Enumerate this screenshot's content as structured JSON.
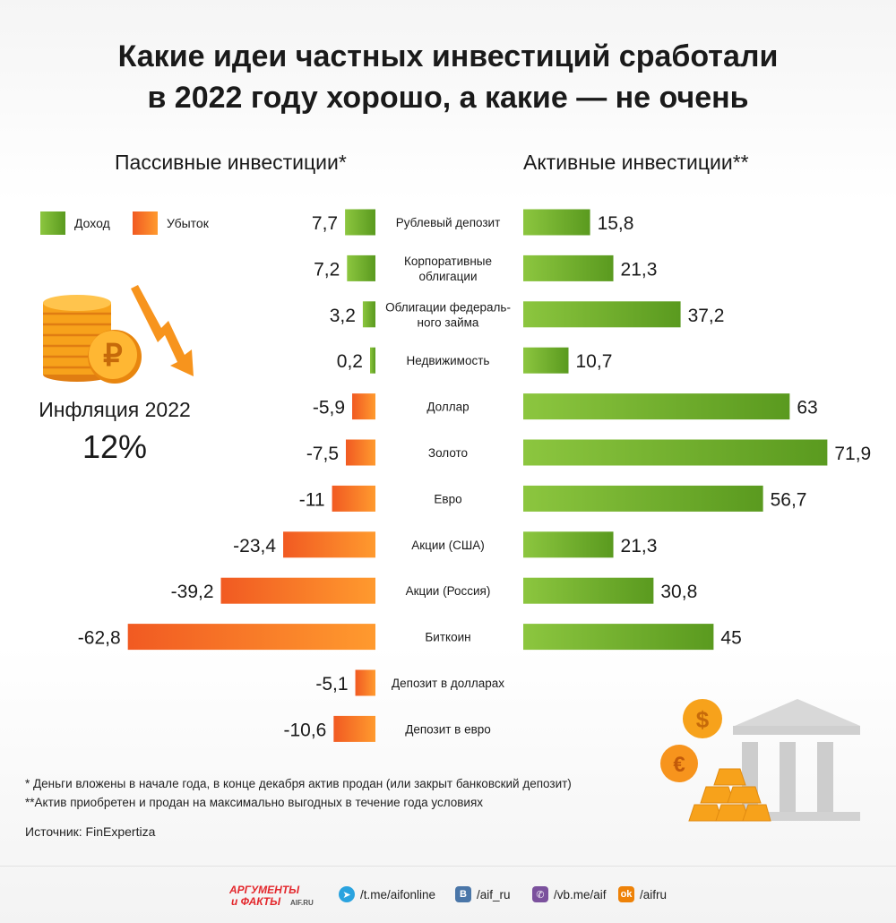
{
  "title_lines": [
    "Какие идеи частных инвестиций сработали",
    "в 2022 году хорошо, а какие — не очень"
  ],
  "passive_heading": "Пассивные инвестиции*",
  "active_heading": "Активные инвестиции**",
  "legend": {
    "income": "Доход",
    "loss": "Убыток"
  },
  "colors": {
    "income_light": "#8cc63f",
    "income_dark": "#5a9a1f",
    "loss_light": "#ff9a2e",
    "loss_dark": "#f15a22",
    "coin": "#f7a21b"
  },
  "inflation": {
    "label": "Инфляция 2022",
    "value": "12%"
  },
  "chart_data": {
    "type": "bar",
    "orientation": "horizontal",
    "categories": [
      "Рублевый депозит",
      "Корпоративные облигации",
      "Облигации федерального займа",
      "Недвижимость",
      "Доллар",
      "Золото",
      "Евро",
      "Акции (США)",
      "Акции (Россия)",
      "Биткоин",
      "Депозит в долларах",
      "Депозит в евро"
    ],
    "category_label_lines": [
      [
        "Рублевый депозит"
      ],
      [
        "Корпоративные",
        "облигации"
      ],
      [
        "Облигации федераль-",
        "ного займа"
      ],
      [
        "Недвижимость"
      ],
      [
        "Доллар"
      ],
      [
        "Золото"
      ],
      [
        "Евро"
      ],
      [
        "Акции (США)"
      ],
      [
        "Акции (Россия)"
      ],
      [
        "Биткоин"
      ],
      [
        "Депозит в долларах"
      ],
      [
        "Депозит в евро"
      ]
    ],
    "series": [
      {
        "name": "Пассивные инвестиции*",
        "values": [
          7.7,
          7.2,
          3.2,
          0.2,
          -5.9,
          -7.5,
          -11,
          -23.4,
          -39.2,
          -62.8,
          -5.1,
          -10.6
        ],
        "labels": [
          "7,7",
          "7,2",
          "3,2",
          "0,2",
          "-5,9",
          "-7,5",
          "-11",
          "-23,4",
          "-39,2",
          "-62,8",
          "-5,1",
          "-10,6"
        ]
      },
      {
        "name": "Активные инвестиции**",
        "values": [
          15.8,
          21.3,
          37.2,
          10.7,
          63,
          71.9,
          56.7,
          21.3,
          30.8,
          45,
          null,
          null
        ],
        "labels": [
          "15,8",
          "21,3",
          "37,2",
          "10,7",
          "63",
          "71,9",
          "56,7",
          "21,3",
          "30,8",
          "45",
          "",
          ""
        ]
      }
    ]
  },
  "footnotes": [
    "* Деньги вложены в начале года, в конце декабря актив продан (или закрыт банковский депозит)",
    "**Актив приобретен и продан на максимально выгодных в течение года условиях"
  ],
  "source": "Источник: FinExpertiza",
  "logo": {
    "line1": "АРГУМЕНТЫ",
    "line2": "и ФАКТЫ",
    "suffix": "AIF.RU"
  },
  "social": [
    {
      "icon": "telegram-icon",
      "text": "/t.me/aifonline"
    },
    {
      "icon": "vk-icon",
      "text": "/aif_ru"
    },
    {
      "icon": "viber-icon",
      "text": "/vb.me/aif"
    },
    {
      "icon": "odnoklassniki-icon",
      "text": "/aifru"
    }
  ]
}
